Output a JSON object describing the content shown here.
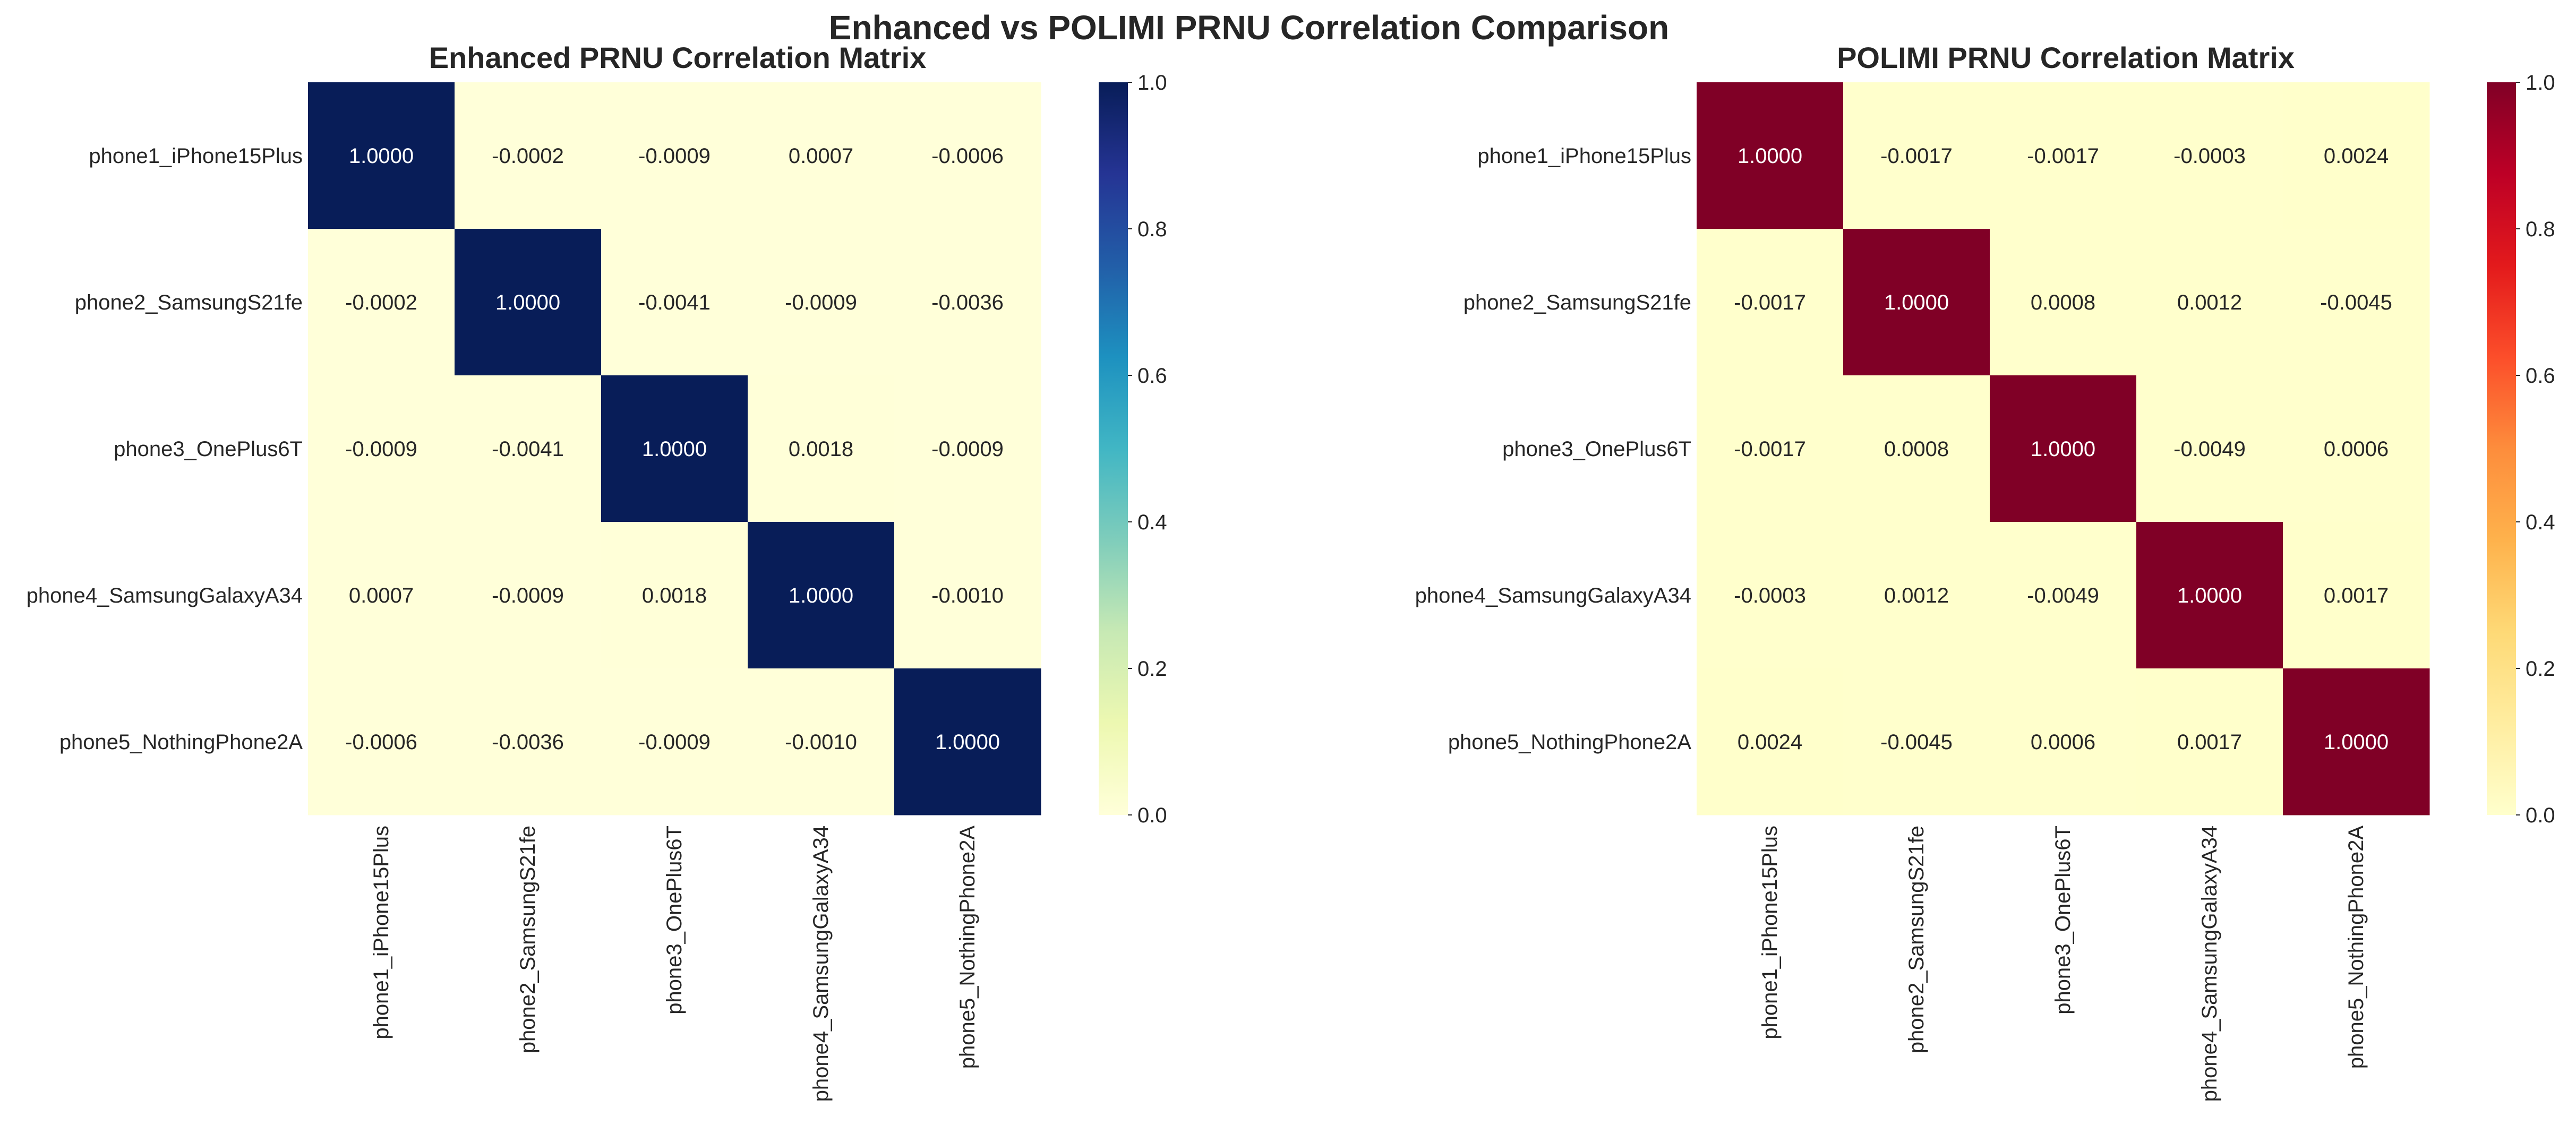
{
  "title": "Enhanced vs POLIMI PRNU Correlation Comparison",
  "chart_data": [
    {
      "type": "heatmap",
      "title": "Enhanced PRNU Correlation Matrix",
      "rows": [
        "phone1_iPhone15Plus",
        "phone2_SamsungS21fe",
        "phone3_OnePlus6T",
        "phone4_SamsungGalaxyA34",
        "phone5_NothingPhone2A"
      ],
      "columns": [
        "phone1_iPhone15Plus",
        "phone2_SamsungS21fe",
        "phone3_OnePlus6T",
        "phone4_SamsungGalaxyA34",
        "phone5_NothingPhone2A"
      ],
      "values": [
        [
          1.0,
          -0.0002,
          -0.0009,
          0.0007,
          -0.0006
        ],
        [
          -0.0002,
          1.0,
          -0.0041,
          -0.0009,
          -0.0036
        ],
        [
          -0.0009,
          -0.0041,
          1.0,
          0.0018,
          -0.0009
        ],
        [
          0.0007,
          -0.0009,
          0.0018,
          1.0,
          -0.001
        ],
        [
          -0.0006,
          -0.0036,
          -0.0009,
          -0.001,
          1.0
        ]
      ],
      "cell_labels": [
        [
          "1.0000",
          "-0.0002",
          "-0.0009",
          "0.0007",
          "-0.0006"
        ],
        [
          "-0.0002",
          "1.0000",
          "-0.0041",
          "-0.0009",
          "-0.0036"
        ],
        [
          "-0.0009",
          "-0.0041",
          "1.0000",
          "0.0018",
          "-0.0009"
        ],
        [
          "0.0007",
          "-0.0009",
          "0.0018",
          "1.0000",
          "-0.0010"
        ],
        [
          "-0.0006",
          "-0.0036",
          "-0.0009",
          "-0.0010",
          "1.0000"
        ]
      ],
      "colormap": "YlGnBu",
      "colorbar_range": [
        0,
        1
      ],
      "colorbar_ticks": [
        "0.0",
        "0.2",
        "0.4",
        "0.6",
        "0.8",
        "1.0"
      ]
    },
    {
      "type": "heatmap",
      "title": "POLIMI PRNU Correlation Matrix",
      "rows": [
        "phone1_iPhone15Plus",
        "phone2_SamsungS21fe",
        "phone3_OnePlus6T",
        "phone4_SamsungGalaxyA34",
        "phone5_NothingPhone2A"
      ],
      "columns": [
        "phone1_iPhone15Plus",
        "phone2_SamsungS21fe",
        "phone3_OnePlus6T",
        "phone4_SamsungGalaxyA34",
        "phone5_NothingPhone2A"
      ],
      "values": [
        [
          1.0,
          -0.0017,
          -0.0017,
          -0.0003,
          0.0024
        ],
        [
          -0.0017,
          1.0,
          0.0008,
          0.0012,
          -0.0045
        ],
        [
          -0.0017,
          0.0008,
          1.0,
          -0.0049,
          0.0006
        ],
        [
          -0.0003,
          0.0012,
          -0.0049,
          1.0,
          0.0017
        ],
        [
          0.0024,
          -0.0045,
          0.0006,
          0.0017,
          1.0
        ]
      ],
      "cell_labels": [
        [
          "1.0000",
          "-0.0017",
          "-0.0017",
          "-0.0003",
          "0.0024"
        ],
        [
          "-0.0017",
          "1.0000",
          "0.0008",
          "0.0012",
          "-0.0045"
        ],
        [
          "-0.0017",
          "0.0008",
          "1.0000",
          "-0.0049",
          "0.0006"
        ],
        [
          "-0.0003",
          "0.0012",
          "-0.0049",
          "1.0000",
          "0.0017"
        ],
        [
          "0.0024",
          "-0.0045",
          "0.0006",
          "0.0017",
          "1.0000"
        ]
      ],
      "colormap": "YlOrRd",
      "colorbar_range": [
        0,
        1
      ],
      "colorbar_ticks": [
        "0.0",
        "0.2",
        "0.4",
        "0.6",
        "0.8",
        "1.0"
      ]
    }
  ]
}
